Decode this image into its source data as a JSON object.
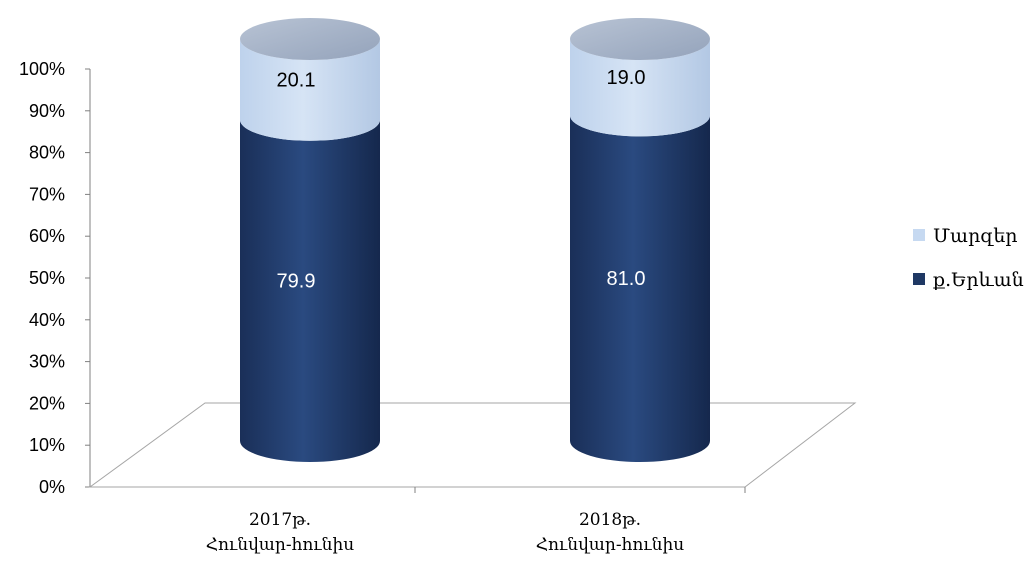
{
  "chart_data": {
    "type": "bar",
    "stacked": true,
    "percent": true,
    "three_d": "cylinder",
    "categories": [
      "2017թ.\nՀունվար-հունիս",
      "2018թ.\nՀունվար-հունիս"
    ],
    "series": [
      {
        "name": "ք.Երևան",
        "values": [
          79.9,
          81.0
        ],
        "labels": [
          "79.9",
          "81.0"
        ],
        "color": "#1f3864"
      },
      {
        "name": "Մարզեր",
        "values": [
          20.1,
          19.0
        ],
        "labels": [
          "20.1",
          "19.0"
        ],
        "color": "#c6d9f1"
      }
    ],
    "y_ticks": [
      "0%",
      "10%",
      "20%",
      "30%",
      "40%",
      "50%",
      "60%",
      "70%",
      "80%",
      "90%",
      "100%"
    ],
    "ylim": [
      0,
      100
    ],
    "legend_position": "right",
    "grid": false
  }
}
